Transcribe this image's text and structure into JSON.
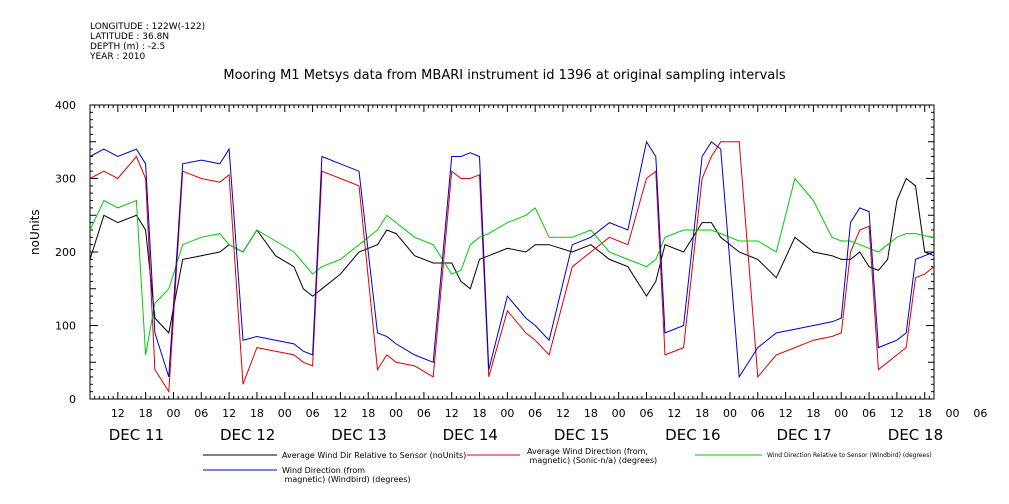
{
  "header": {
    "longitude": "LONGITUDE : 122W(-122)",
    "latitude": "LATITUDE : 36.8N",
    "depth": "DEPTH (m) : -2.5",
    "year": "YEAR : 2010"
  },
  "chart_data": {
    "type": "line",
    "title": "Mooring M1 Metsys data from MBARI instrument id 1396 at original sampling intervals",
    "ylabel": "noUnits",
    "xlabel": "",
    "ylim": [
      0,
      400
    ],
    "y_ticks": [
      "0",
      "100",
      "200",
      "300",
      "400"
    ],
    "xlim_hours": [
      0,
      182
    ],
    "hour_ticks": [
      "12",
      "18",
      "00",
      "06",
      "12",
      "18",
      "00",
      "06",
      "12",
      "18",
      "00",
      "06",
      "12",
      "18",
      "00",
      "06",
      "12",
      "18",
      "00",
      "06",
      "12",
      "18",
      "00",
      "06",
      "12",
      "18",
      "00",
      "06",
      "12",
      "18",
      "00",
      "06"
    ],
    "day_labels": [
      "DEC 11",
      "DEC 12",
      "DEC 13",
      "DEC 14",
      "DEC 15",
      "DEC 16",
      "DEC 17",
      "DEC 18"
    ],
    "series": [
      {
        "name": "Average Wind Dir Relative to Sensor (noUnits)",
        "color": "#000000",
        "points": [
          [
            0,
            190
          ],
          [
            3,
            250
          ],
          [
            6,
            240
          ],
          [
            10,
            250
          ],
          [
            12,
            230
          ],
          [
            14,
            110
          ],
          [
            17,
            90
          ],
          [
            20,
            190
          ],
          [
            24,
            195
          ],
          [
            28,
            200
          ],
          [
            30,
            210
          ],
          [
            33,
            200
          ],
          [
            36,
            230
          ],
          [
            40,
            195
          ],
          [
            44,
            180
          ],
          [
            46,
            150
          ],
          [
            48,
            140
          ],
          [
            50,
            150
          ],
          [
            54,
            170
          ],
          [
            58,
            200
          ],
          [
            62,
            210
          ],
          [
            64,
            230
          ],
          [
            66,
            225
          ],
          [
            70,
            195
          ],
          [
            74,
            185
          ],
          [
            78,
            185
          ],
          [
            80,
            160
          ],
          [
            82,
            150
          ],
          [
            84,
            190
          ],
          [
            86,
            195
          ],
          [
            90,
            205
          ],
          [
            94,
            200
          ],
          [
            96,
            210
          ],
          [
            99,
            210
          ],
          [
            104,
            200
          ],
          [
            108,
            210
          ],
          [
            112,
            190
          ],
          [
            116,
            180
          ],
          [
            120,
            140
          ],
          [
            122,
            160
          ],
          [
            124,
            210
          ],
          [
            128,
            200
          ],
          [
            132,
            240
          ],
          [
            134,
            240
          ],
          [
            136,
            220
          ],
          [
            140,
            200
          ],
          [
            144,
            190
          ],
          [
            148,
            165
          ],
          [
            152,
            220
          ],
          [
            156,
            200
          ],
          [
            160,
            195
          ],
          [
            162,
            190
          ],
          [
            164,
            190
          ],
          [
            166,
            200
          ],
          [
            168,
            180
          ],
          [
            170,
            175
          ],
          [
            172,
            190
          ],
          [
            174,
            270
          ],
          [
            176,
            300
          ],
          [
            178,
            290
          ],
          [
            180,
            200
          ],
          [
            182,
            195
          ]
        ]
      },
      {
        "name": "Average Wind Direction (from, magnetic) (Sonic-n/a) (degrees)",
        "color": "#dd0000",
        "points": [
          [
            0,
            300
          ],
          [
            3,
            310
          ],
          [
            6,
            300
          ],
          [
            10,
            330
          ],
          [
            12,
            300
          ],
          [
            14,
            40
          ],
          [
            17,
            10
          ],
          [
            20,
            310
          ],
          [
            24,
            300
          ],
          [
            28,
            295
          ],
          [
            30,
            305
          ],
          [
            33,
            20
          ],
          [
            36,
            70
          ],
          [
            40,
            65
          ],
          [
            44,
            60
          ],
          [
            46,
            50
          ],
          [
            48,
            45
          ],
          [
            50,
            310
          ],
          [
            54,
            300
          ],
          [
            58,
            290
          ],
          [
            62,
            40
          ],
          [
            64,
            60
          ],
          [
            66,
            50
          ],
          [
            70,
            45
          ],
          [
            74,
            30
          ],
          [
            78,
            310
          ],
          [
            80,
            300
          ],
          [
            82,
            300
          ],
          [
            84,
            305
          ],
          [
            86,
            30
          ],
          [
            90,
            120
          ],
          [
            94,
            90
          ],
          [
            96,
            80
          ],
          [
            99,
            60
          ],
          [
            104,
            180
          ],
          [
            108,
            200
          ],
          [
            112,
            220
          ],
          [
            116,
            210
          ],
          [
            120,
            300
          ],
          [
            122,
            310
          ],
          [
            124,
            60
          ],
          [
            128,
            70
          ],
          [
            132,
            300
          ],
          [
            134,
            330
          ],
          [
            136,
            350
          ],
          [
            140,
            350
          ],
          [
            144,
            30
          ],
          [
            148,
            60
          ],
          [
            152,
            70
          ],
          [
            156,
            80
          ],
          [
            160,
            85
          ],
          [
            162,
            90
          ],
          [
            164,
            200
          ],
          [
            166,
            230
          ],
          [
            168,
            235
          ],
          [
            170,
            40
          ],
          [
            172,
            50
          ],
          [
            174,
            60
          ],
          [
            176,
            70
          ],
          [
            178,
            165
          ],
          [
            180,
            170
          ],
          [
            182,
            180
          ]
        ]
      },
      {
        "name": "Wind Direction Relative to Sensor (Windbird) (degrees)",
        "color": "#00cc00",
        "points": [
          [
            0,
            230
          ],
          [
            3,
            270
          ],
          [
            6,
            260
          ],
          [
            10,
            270
          ],
          [
            12,
            60
          ],
          [
            14,
            130
          ],
          [
            17,
            150
          ],
          [
            20,
            210
          ],
          [
            24,
            220
          ],
          [
            28,
            225
          ],
          [
            30,
            210
          ],
          [
            33,
            200
          ],
          [
            36,
            230
          ],
          [
            40,
            215
          ],
          [
            44,
            200
          ],
          [
            46,
            185
          ],
          [
            48,
            170
          ],
          [
            50,
            180
          ],
          [
            54,
            190
          ],
          [
            58,
            210
          ],
          [
            62,
            230
          ],
          [
            64,
            250
          ],
          [
            66,
            240
          ],
          [
            70,
            220
          ],
          [
            74,
            210
          ],
          [
            78,
            170
          ],
          [
            80,
            175
          ],
          [
            82,
            210
          ],
          [
            84,
            220
          ],
          [
            86,
            225
          ],
          [
            90,
            240
          ],
          [
            94,
            250
          ],
          [
            96,
            260
          ],
          [
            99,
            220
          ],
          [
            104,
            220
          ],
          [
            108,
            230
          ],
          [
            112,
            200
          ],
          [
            116,
            190
          ],
          [
            120,
            180
          ],
          [
            122,
            190
          ],
          [
            124,
            220
          ],
          [
            128,
            230
          ],
          [
            132,
            230
          ],
          [
            134,
            230
          ],
          [
            136,
            225
          ],
          [
            140,
            215
          ],
          [
            144,
            215
          ],
          [
            148,
            200
          ],
          [
            152,
            300
          ],
          [
            156,
            270
          ],
          [
            160,
            220
          ],
          [
            162,
            215
          ],
          [
            164,
            215
          ],
          [
            166,
            210
          ],
          [
            168,
            205
          ],
          [
            170,
            200
          ],
          [
            172,
            210
          ],
          [
            174,
            220
          ],
          [
            176,
            225
          ],
          [
            178,
            225
          ],
          [
            180,
            222
          ],
          [
            182,
            220
          ]
        ]
      },
      {
        "name": "Wind Direction (from magnetic) (Windbird) (degrees)",
        "color": "#0000cc",
        "points": [
          [
            0,
            330
          ],
          [
            3,
            340
          ],
          [
            6,
            330
          ],
          [
            10,
            340
          ],
          [
            12,
            320
          ],
          [
            14,
            90
          ],
          [
            17,
            30
          ],
          [
            20,
            320
          ],
          [
            24,
            325
          ],
          [
            28,
            320
          ],
          [
            30,
            340
          ],
          [
            33,
            80
          ],
          [
            36,
            85
          ],
          [
            40,
            80
          ],
          [
            44,
            75
          ],
          [
            46,
            65
          ],
          [
            48,
            60
          ],
          [
            50,
            330
          ],
          [
            54,
            320
          ],
          [
            58,
            310
          ],
          [
            62,
            90
          ],
          [
            64,
            85
          ],
          [
            66,
            75
          ],
          [
            70,
            60
          ],
          [
            74,
            50
          ],
          [
            78,
            330
          ],
          [
            80,
            330
          ],
          [
            82,
            335
          ],
          [
            84,
            330
          ],
          [
            86,
            40
          ],
          [
            90,
            140
          ],
          [
            94,
            110
          ],
          [
            96,
            100
          ],
          [
            99,
            80
          ],
          [
            104,
            210
          ],
          [
            108,
            220
          ],
          [
            112,
            240
          ],
          [
            116,
            230
          ],
          [
            120,
            350
          ],
          [
            122,
            330
          ],
          [
            124,
            90
          ],
          [
            128,
            100
          ],
          [
            132,
            330
          ],
          [
            134,
            350
          ],
          [
            136,
            340
          ],
          [
            140,
            30
          ],
          [
            144,
            70
          ],
          [
            148,
            90
          ],
          [
            152,
            95
          ],
          [
            156,
            100
          ],
          [
            160,
            105
          ],
          [
            162,
            110
          ],
          [
            164,
            240
          ],
          [
            166,
            260
          ],
          [
            168,
            255
          ],
          [
            170,
            70
          ],
          [
            172,
            75
          ],
          [
            174,
            80
          ],
          [
            176,
            90
          ],
          [
            178,
            190
          ],
          [
            180,
            195
          ],
          [
            182,
            200
          ]
        ]
      }
    ]
  },
  "legend": [
    {
      "label": "Average Wind Dir Relative to Sensor (noUnits)",
      "color": "#000000"
    },
    {
      "label": "Average Wind Direction (from,\n magnetic) (Sonic-n/a) (degrees)",
      "color": "#dd0000"
    },
    {
      "label": "Wind Direction Relative to Sensor (Windbird) (degrees)",
      "color": "#00cc00"
    },
    {
      "label": "Wind Direction (from\n magnetic) (Windbird) (degrees)",
      "color": "#0000cc"
    }
  ]
}
